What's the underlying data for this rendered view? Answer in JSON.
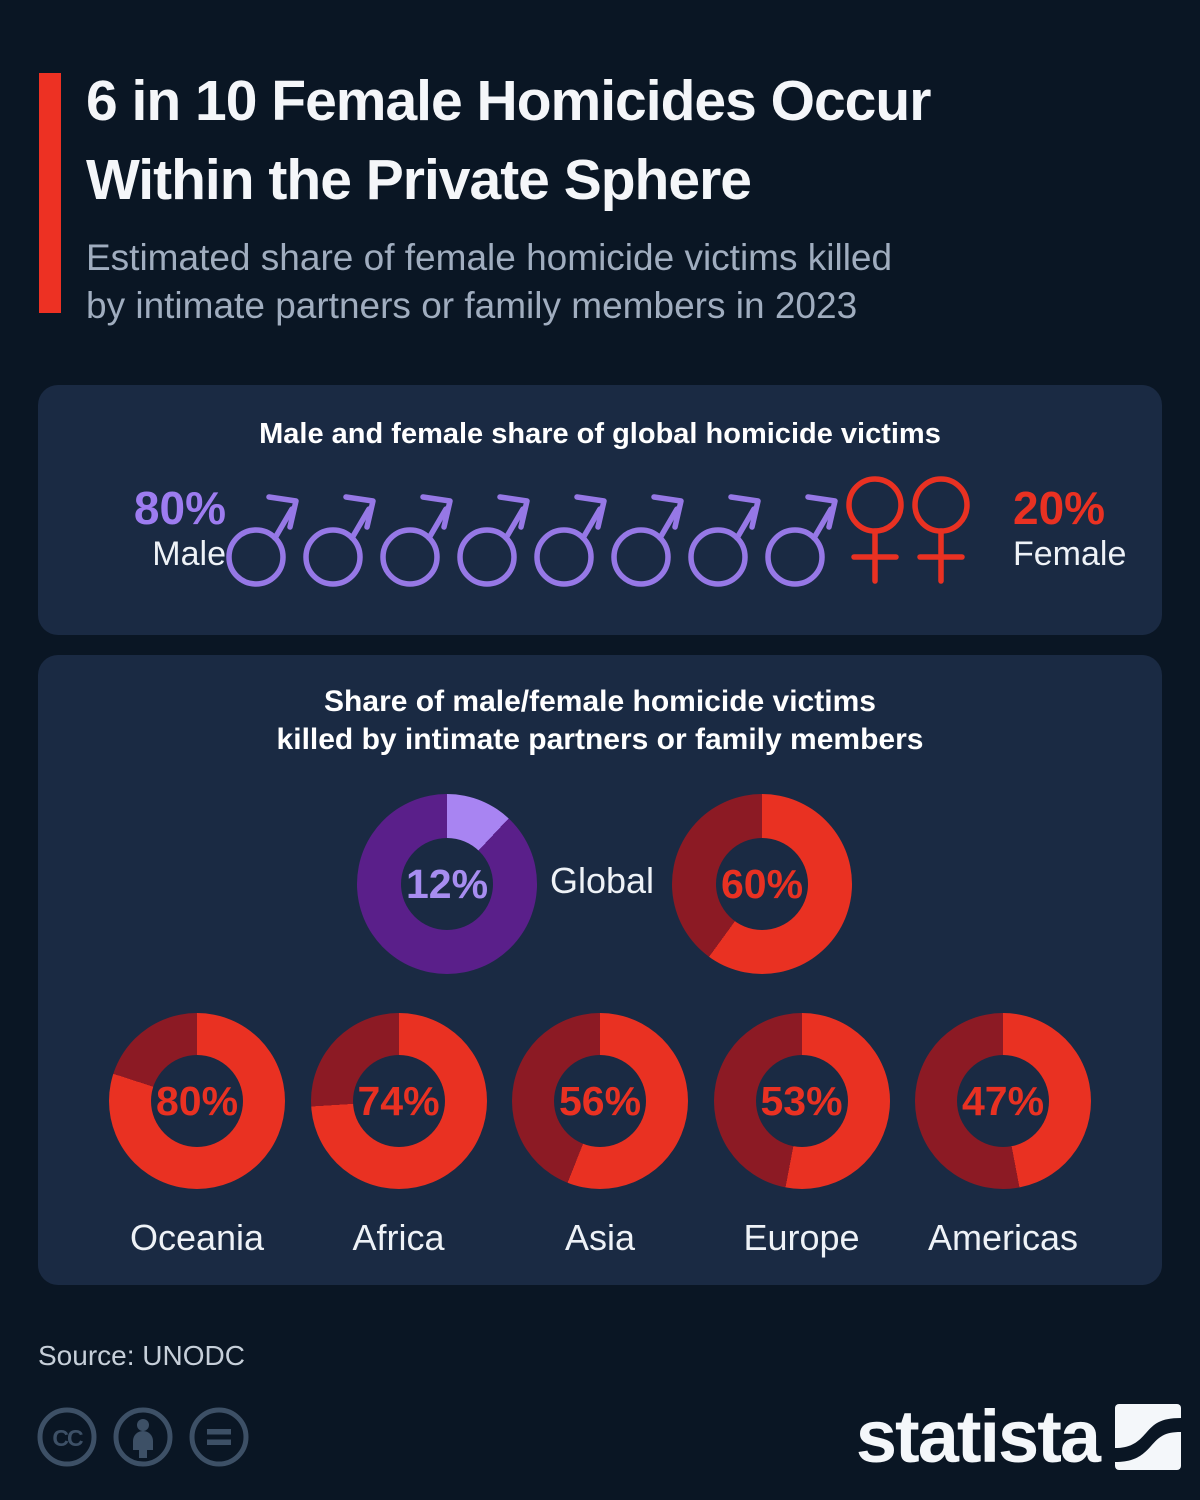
{
  "colors": {
    "page_bg": "#0a1624",
    "panel_bg": "#1a2a43",
    "accent_red": "#ed3123",
    "bright_red": "#e93122",
    "dark_red": "#8c1a24",
    "bright_purple": "#a884f2",
    "dark_purple": "#5a1f8a",
    "male_icon_purple": "#9678e6"
  },
  "header": {
    "title_line1": "6 in 10 Female Homicides Occur",
    "title_line2": "Within the Private Sphere",
    "subtitle_line1": "Estimated share of female homicide victims killed",
    "subtitle_line2": "by intimate partners or family members in 2023"
  },
  "panel1": {
    "heading": "Male and female share of global homicide victims",
    "male": {
      "pct": "80%",
      "label": "Male",
      "count": 8,
      "color": "#9678e6",
      "icon": "male-gender-symbol-icon"
    },
    "female": {
      "pct": "20%",
      "label": "Female",
      "count": 2,
      "color": "#e93122",
      "icon": "female-gender-symbol-icon"
    }
  },
  "panel2": {
    "heading_line1": "Share of male/female homicide victims",
    "heading_line2": "killed by intimate partners or family members",
    "global_label": "Global",
    "donuts": {
      "global_male": {
        "pct_label": "12%",
        "value": 12,
        "bright": "#a884f2",
        "dark": "#5a1f8a"
      },
      "global_female": {
        "pct_label": "60%",
        "value": 60,
        "bright": "#e93122",
        "dark": "#8c1a24"
      }
    },
    "regions": [
      {
        "label": "Oceania",
        "pct_label": "80%",
        "value": 80,
        "bright": "#e93122",
        "dark": "#8c1a24"
      },
      {
        "label": "Africa",
        "pct_label": "74%",
        "value": 74,
        "bright": "#e93122",
        "dark": "#8c1a24"
      },
      {
        "label": "Asia",
        "pct_label": "56%",
        "value": 56,
        "bright": "#e93122",
        "dark": "#8c1a24"
      },
      {
        "label": "Europe",
        "pct_label": "53%",
        "value": 53,
        "bright": "#e93122",
        "dark": "#8c1a24"
      },
      {
        "label": "Americas",
        "pct_label": "47%",
        "value": 47,
        "bright": "#e93122",
        "dark": "#8c1a24"
      }
    ]
  },
  "footer": {
    "source": "Source: UNODC",
    "brand": "statista",
    "license_icons": [
      "creative-commons-icon",
      "attribution-person-icon",
      "no-derivatives-equals-icon"
    ]
  },
  "chart_data": [
    {
      "type": "pie",
      "title": "Male and female share of global homicide victims",
      "categories": [
        "Male",
        "Female"
      ],
      "values": [
        80,
        20
      ],
      "unit": "%",
      "legend_position": "sides",
      "note": "rendered as pictogram of 8 male and 2 female gender symbols"
    },
    {
      "type": "pie",
      "title": "Share of male/female homicide victims killed by intimate partners or family members",
      "categories": [
        "Global (male victims)",
        "Global (female victims)",
        "Oceania",
        "Africa",
        "Asia",
        "Europe",
        "Americas"
      ],
      "values": [
        12,
        60,
        80,
        74,
        56,
        53,
        47
      ],
      "unit": "%",
      "note": "seven donut charts; remainder of each donut shown in darker shade"
    }
  ]
}
